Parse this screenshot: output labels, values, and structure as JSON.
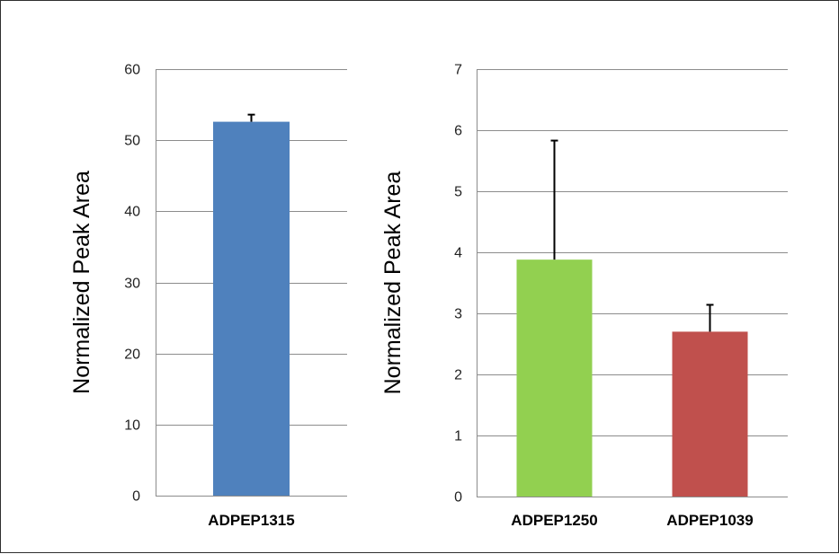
{
  "chart_data": [
    {
      "type": "bar",
      "categories": [
        "ADPEP1315"
      ],
      "values": [
        52.6
      ],
      "errors": [
        1.0
      ],
      "colors": [
        "#4f81bd"
      ],
      "ylabel": "Normalized Peak Area",
      "xlabel": "",
      "ylim": [
        0,
        60
      ],
      "yticks": [
        0,
        10,
        20,
        30,
        40,
        50,
        60
      ],
      "grid": true
    },
    {
      "type": "bar",
      "categories": [
        "ADPEP1250",
        "ADPEP1039"
      ],
      "values": [
        3.88,
        2.7
      ],
      "errors": [
        1.95,
        0.44
      ],
      "colors": [
        "#92d050",
        "#c0504d"
      ],
      "ylabel": "Normalized Peak Area",
      "xlabel": "",
      "ylim": [
        0,
        7
      ],
      "yticks": [
        0,
        1,
        2,
        3,
        4,
        5,
        6,
        7
      ],
      "grid": true
    }
  ]
}
